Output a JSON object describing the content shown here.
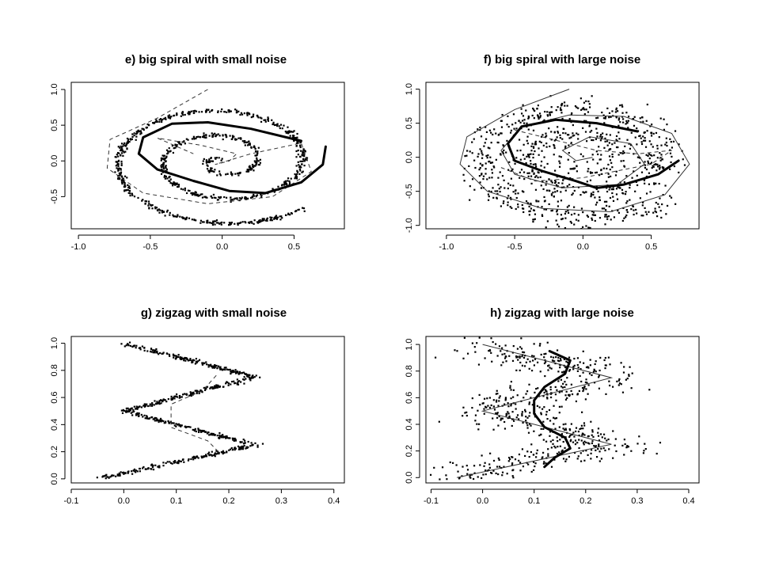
{
  "chart_data": [
    {
      "type": "scatter",
      "title": "e) big spiral with small noise",
      "xlabel": "",
      "ylabel": "",
      "xlim": [
        -1.05,
        0.85
      ],
      "ylim": [
        -0.95,
        1.1
      ],
      "xticks": [
        "-1.0",
        "-0.5",
        "0.0",
        "0.5"
      ],
      "xtick_values": [
        -1.0,
        -0.5,
        0.0,
        0.5
      ],
      "yticks": [
        "-0.5",
        "0.0",
        "0.5",
        "1.0"
      ],
      "ytick_values": [
        -0.5,
        0.0,
        0.5,
        1.0
      ],
      "grid": false,
      "pattern": "spiral",
      "data_generating_curve": {
        "r0": 0.02,
        "r1": 0.95,
        "turns": 2.6,
        "phase": 1.7,
        "cx": 0.0,
        "cy": 0.0,
        "xscale": 0.88,
        "yscale": 0.96
      },
      "noise": 0.015,
      "points": 900,
      "thick_curve": [
        [
          0.55,
          0.28
        ],
        [
          0.2,
          0.45
        ],
        [
          -0.1,
          0.54
        ],
        [
          -0.35,
          0.52
        ],
        [
          -0.55,
          0.33
        ],
        [
          -0.58,
          0.1
        ],
        [
          -0.45,
          -0.12
        ],
        [
          -0.2,
          -0.28
        ],
        [
          0.05,
          -0.42
        ],
        [
          0.3,
          -0.45
        ],
        [
          0.55,
          -0.3
        ],
        [
          0.7,
          -0.05
        ],
        [
          0.72,
          0.2
        ]
      ],
      "dashed_curve": [
        [
          -0.1,
          1.0
        ],
        [
          -0.45,
          0.6
        ],
        [
          -0.78,
          0.3
        ],
        [
          -0.8,
          -0.1
        ],
        [
          -0.55,
          -0.45
        ],
        [
          -0.1,
          -0.6
        ],
        [
          0.35,
          -0.5
        ],
        [
          0.62,
          -0.15
        ],
        [
          0.55,
          0.25
        ],
        [
          0.2,
          0.1
        ],
        [
          -0.05,
          -0.05
        ],
        [
          0.05,
          0.0
        ],
        [
          0.1,
          0.1
        ],
        [
          -0.15,
          0.22
        ],
        [
          -0.45,
          0.32
        ],
        [
          -0.2,
          0.1
        ]
      ],
      "thin_curve": []
    },
    {
      "type": "scatter",
      "title": "f) big spiral with large noise",
      "xlabel": "",
      "ylabel": "",
      "xlim": [
        -1.15,
        0.85
      ],
      "ylim": [
        -1.05,
        1.1
      ],
      "xticks": [
        "-1.0",
        "-0.5",
        "0.0",
        "0.5"
      ],
      "xtick_values": [
        -1.0,
        -0.5,
        0.0,
        0.5
      ],
      "yticks": [
        "-1.0",
        "-0.5",
        "0.0",
        "0.5",
        "1.0"
      ],
      "ytick_values": [
        -1.0,
        -0.5,
        0.0,
        0.5,
        1.0
      ],
      "grid": false,
      "pattern": "spiral",
      "data_generating_curve": {
        "r0": 0.02,
        "r1": 0.95,
        "turns": 2.6,
        "phase": 1.7,
        "cx": 0.0,
        "cy": 0.0,
        "xscale": 0.88,
        "yscale": 0.96
      },
      "noise": 0.09,
      "points": 900,
      "thick_curve": [
        [
          0.4,
          0.38
        ],
        [
          0.1,
          0.5
        ],
        [
          -0.2,
          0.55
        ],
        [
          -0.45,
          0.45
        ],
        [
          -0.55,
          0.2
        ],
        [
          -0.5,
          -0.05
        ],
        [
          -0.3,
          -0.2
        ],
        [
          -0.05,
          -0.35
        ],
        [
          0.1,
          -0.45
        ],
        [
          0.3,
          -0.4
        ],
        [
          0.55,
          -0.25
        ],
        [
          0.7,
          -0.05
        ]
      ],
      "dashed_curve": [
        [
          -0.5,
          0.4
        ],
        [
          -0.2,
          0.25
        ],
        [
          0.1,
          0.1
        ],
        [
          0.4,
          0.05
        ],
        [
          0.65,
          0.1
        ],
        [
          0.5,
          -0.1
        ],
        [
          0.0,
          -0.3
        ],
        [
          -0.35,
          -0.35
        ],
        [
          -0.6,
          -0.15
        ]
      ],
      "thin_curve": [
        [
          -0.1,
          1.0
        ],
        [
          -0.5,
          0.7
        ],
        [
          -0.85,
          0.3
        ],
        [
          -0.9,
          -0.1
        ],
        [
          -0.7,
          -0.5
        ],
        [
          -0.3,
          -0.75
        ],
        [
          0.2,
          -0.8
        ],
        [
          0.6,
          -0.55
        ],
        [
          0.78,
          -0.1
        ],
        [
          0.65,
          0.35
        ],
        [
          0.3,
          0.6
        ],
        [
          -0.1,
          0.62
        ],
        [
          -0.45,
          0.45
        ],
        [
          -0.6,
          0.1
        ],
        [
          -0.5,
          -0.25
        ],
        [
          -0.15,
          -0.45
        ],
        [
          0.25,
          -0.4
        ],
        [
          0.45,
          -0.1
        ],
        [
          0.35,
          0.2
        ],
        [
          0.05,
          0.3
        ],
        [
          -0.15,
          0.1
        ],
        [
          -0.05,
          -0.05
        ],
        [
          0.07,
          0.0
        ]
      ]
    },
    {
      "type": "scatter",
      "title": "g) zigzag with small noise",
      "xlabel": "",
      "ylabel": "",
      "xlim": [
        -0.1,
        0.42
      ],
      "ylim": [
        -0.03,
        1.05
      ],
      "xticks": [
        "-0.1",
        "0.0",
        "0.1",
        "0.2",
        "0.3",
        "0.4"
      ],
      "xtick_values": [
        -0.1,
        0.0,
        0.1,
        0.2,
        0.3,
        0.4
      ],
      "yticks": [
        "0.0",
        "0.2",
        "0.4",
        "0.6",
        "0.8",
        "1.0"
      ],
      "ytick_values": [
        0.0,
        0.2,
        0.4,
        0.6,
        0.8,
        1.0
      ],
      "grid": false,
      "pattern": "zigzag",
      "vertices": [
        [
          0.0,
          1.0
        ],
        [
          0.25,
          0.75
        ],
        [
          0.0,
          0.5
        ],
        [
          0.25,
          0.25
        ],
        [
          -0.05,
          0.0
        ]
      ],
      "noise": 0.006,
      "points": 700,
      "thick_curve": [],
      "dashed_curve": [
        [
          0.18,
          0.2
        ],
        [
          0.16,
          0.28
        ],
        [
          0.09,
          0.38
        ],
        [
          0.09,
          0.55
        ],
        [
          0.15,
          0.65
        ],
        [
          0.18,
          0.78
        ]
      ],
      "thin_curve": []
    },
    {
      "type": "scatter",
      "title": "h) zigzag with large noise",
      "xlabel": "",
      "ylabel": "",
      "xlim": [
        -0.11,
        0.42
      ],
      "ylim": [
        -0.04,
        1.06
      ],
      "xticks": [
        "-0.1",
        "0.0",
        "0.1",
        "0.2",
        "0.3",
        "0.4"
      ],
      "xtick_values": [
        -0.1,
        0.0,
        0.1,
        0.2,
        0.3,
        0.4
      ],
      "yticks": [
        "0.0",
        "0.2",
        "0.4",
        "0.6",
        "0.8",
        "1.0"
      ],
      "ytick_values": [
        0.0,
        0.2,
        0.4,
        0.6,
        0.8,
        1.0
      ],
      "grid": false,
      "pattern": "zigzag",
      "vertices": [
        [
          0.0,
          1.0
        ],
        [
          0.25,
          0.75
        ],
        [
          0.0,
          0.5
        ],
        [
          0.25,
          0.25
        ],
        [
          -0.05,
          0.0
        ]
      ],
      "noise": 0.045,
      "points": 650,
      "thick_curve": [
        [
          0.13,
          0.95
        ],
        [
          0.17,
          0.88
        ],
        [
          0.16,
          0.78
        ],
        [
          0.12,
          0.68
        ],
        [
          0.1,
          0.58
        ],
        [
          0.1,
          0.48
        ],
        [
          0.12,
          0.38
        ],
        [
          0.16,
          0.3
        ],
        [
          0.17,
          0.22
        ],
        [
          0.14,
          0.15
        ],
        [
          0.12,
          0.08
        ]
      ],
      "dashed_curve": [],
      "thin_curve": [
        [
          0.0,
          1.0
        ],
        [
          0.25,
          0.75
        ],
        [
          0.0,
          0.5
        ],
        [
          0.25,
          0.25
        ],
        [
          -0.05,
          0.0
        ]
      ]
    }
  ]
}
